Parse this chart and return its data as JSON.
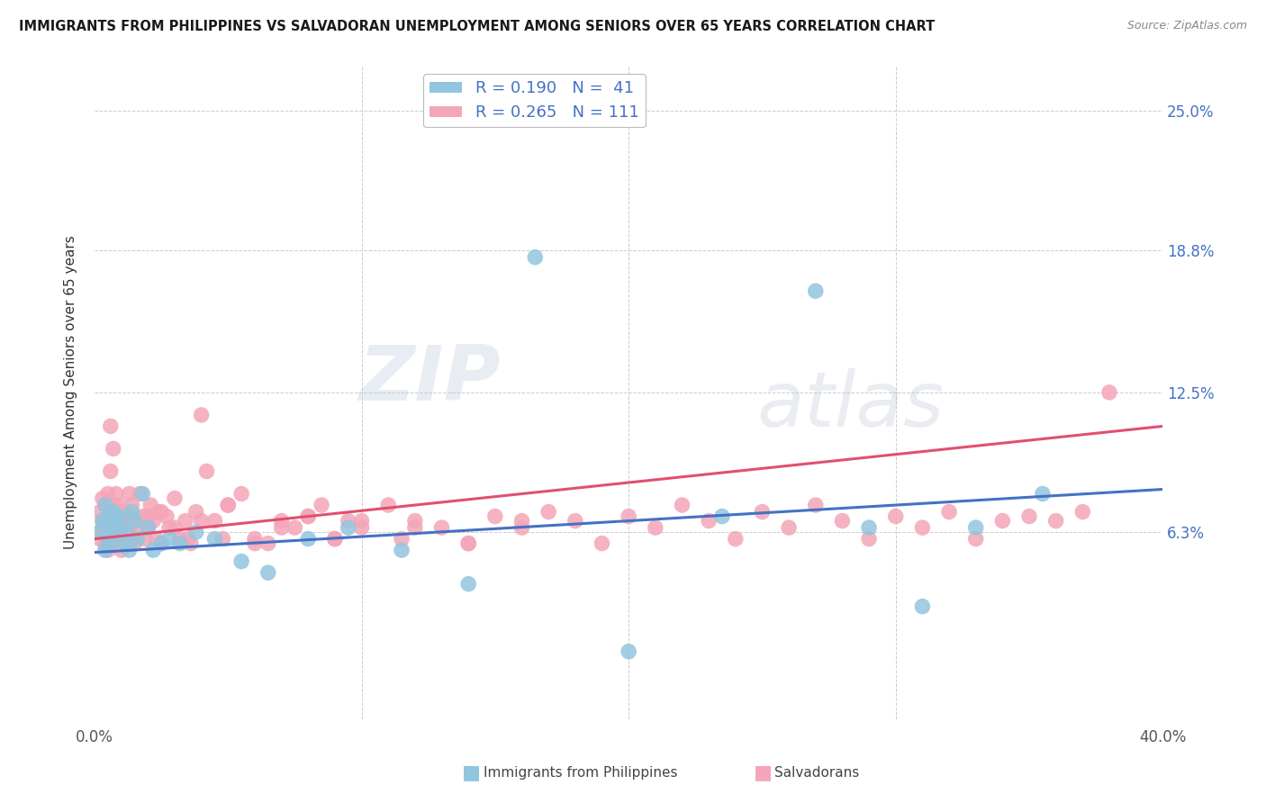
{
  "title": "IMMIGRANTS FROM PHILIPPINES VS SALVADORAN UNEMPLOYMENT AMONG SENIORS OVER 65 YEARS CORRELATION CHART",
  "source": "Source: ZipAtlas.com",
  "ylabel": "Unemployment Among Seniors over 65 years",
  "ytick_vals": [
    0.063,
    0.125,
    0.188,
    0.25
  ],
  "ytick_labels": [
    "6.3%",
    "12.5%",
    "18.8%",
    "25.0%"
  ],
  "xlim": [
    0.0,
    0.4
  ],
  "ylim": [
    -0.02,
    0.27
  ],
  "color_blue": "#92C5DE",
  "color_pink": "#F4A6B8",
  "color_blue_line": "#4472C4",
  "color_pink_line": "#E05070",
  "color_text_blue": "#4472C4",
  "watermark_zip": "ZIP",
  "watermark_atlas": "atlas",
  "phil_line_start_y": 0.054,
  "phil_line_end_y": 0.082,
  "salv_line_start_y": 0.06,
  "salv_line_end_y": 0.11,
  "legend_label1": "R = 0.190   N =  41",
  "legend_label2": "R = 0.265   N = 111",
  "bottom_label1": "Immigrants from Philippines",
  "bottom_label2": "Salvadorans",
  "phil_x": [
    0.002,
    0.003,
    0.004,
    0.004,
    0.005,
    0.005,
    0.006,
    0.006,
    0.007,
    0.007,
    0.008,
    0.009,
    0.01,
    0.011,
    0.012,
    0.013,
    0.014,
    0.015,
    0.016,
    0.018,
    0.02,
    0.022,
    0.025,
    0.028,
    0.032,
    0.038,
    0.045,
    0.055,
    0.065,
    0.08,
    0.095,
    0.115,
    0.14,
    0.165,
    0.2,
    0.235,
    0.27,
    0.29,
    0.31,
    0.33,
    0.355
  ],
  "phil_y": [
    0.063,
    0.068,
    0.055,
    0.075,
    0.06,
    0.07,
    0.065,
    0.058,
    0.072,
    0.062,
    0.068,
    0.07,
    0.065,
    0.058,
    0.063,
    0.055,
    0.072,
    0.068,
    0.06,
    0.08,
    0.065,
    0.055,
    0.058,
    0.06,
    0.058,
    0.063,
    0.06,
    0.05,
    0.045,
    0.06,
    0.065,
    0.055,
    0.04,
    0.185,
    0.01,
    0.07,
    0.17,
    0.065,
    0.03,
    0.065,
    0.08
  ],
  "salv_x": [
    0.002,
    0.002,
    0.003,
    0.003,
    0.004,
    0.004,
    0.005,
    0.005,
    0.005,
    0.006,
    0.006,
    0.006,
    0.007,
    0.007,
    0.007,
    0.008,
    0.008,
    0.008,
    0.009,
    0.009,
    0.01,
    0.01,
    0.011,
    0.011,
    0.012,
    0.012,
    0.013,
    0.013,
    0.014,
    0.014,
    0.015,
    0.015,
    0.016,
    0.017,
    0.018,
    0.019,
    0.02,
    0.021,
    0.022,
    0.023,
    0.024,
    0.025,
    0.027,
    0.028,
    0.03,
    0.032,
    0.034,
    0.036,
    0.038,
    0.04,
    0.042,
    0.045,
    0.048,
    0.05,
    0.055,
    0.06,
    0.065,
    0.07,
    0.075,
    0.08,
    0.085,
    0.09,
    0.095,
    0.1,
    0.11,
    0.115,
    0.12,
    0.13,
    0.14,
    0.15,
    0.16,
    0.17,
    0.18,
    0.19,
    0.2,
    0.21,
    0.22,
    0.23,
    0.24,
    0.25,
    0.26,
    0.27,
    0.28,
    0.29,
    0.3,
    0.31,
    0.32,
    0.33,
    0.34,
    0.35,
    0.36,
    0.37,
    0.003,
    0.006,
    0.01,
    0.015,
    0.02,
    0.025,
    0.03,
    0.035,
    0.04,
    0.05,
    0.06,
    0.07,
    0.08,
    0.09,
    0.1,
    0.12,
    0.14,
    0.16,
    0.38
  ],
  "salv_y": [
    0.06,
    0.072,
    0.065,
    0.078,
    0.058,
    0.068,
    0.055,
    0.07,
    0.08,
    0.06,
    0.072,
    0.09,
    0.065,
    0.075,
    0.1,
    0.06,
    0.07,
    0.08,
    0.065,
    0.075,
    0.055,
    0.068,
    0.06,
    0.072,
    0.058,
    0.07,
    0.065,
    0.08,
    0.06,
    0.075,
    0.058,
    0.068,
    0.065,
    0.08,
    0.07,
    0.06,
    0.065,
    0.075,
    0.068,
    0.06,
    0.072,
    0.058,
    0.07,
    0.065,
    0.078,
    0.06,
    0.068,
    0.058,
    0.072,
    0.115,
    0.09,
    0.068,
    0.06,
    0.075,
    0.08,
    0.06,
    0.058,
    0.068,
    0.065,
    0.07,
    0.075,
    0.06,
    0.068,
    0.065,
    0.075,
    0.06,
    0.068,
    0.065,
    0.058,
    0.07,
    0.065,
    0.072,
    0.068,
    0.058,
    0.07,
    0.065,
    0.075,
    0.068,
    0.06,
    0.072,
    0.065,
    0.075,
    0.068,
    0.06,
    0.07,
    0.065,
    0.072,
    0.06,
    0.068,
    0.07,
    0.068,
    0.072,
    0.068,
    0.11,
    0.06,
    0.068,
    0.07,
    0.072,
    0.065,
    0.06,
    0.068,
    0.075,
    0.058,
    0.065,
    0.07,
    0.06,
    0.068,
    0.065,
    0.058,
    0.068,
    0.125
  ]
}
